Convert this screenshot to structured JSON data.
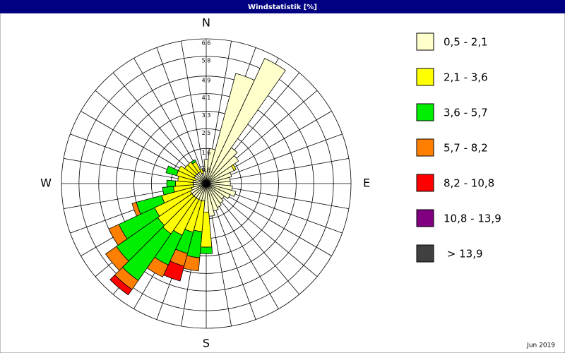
{
  "chart_data": {
    "type": "windrose",
    "title": "Windstatistik [%]",
    "footnote": "Jun 2019",
    "categories": [
      "N",
      null,
      null,
      null,
      null,
      null,
      null,
      null,
      null,
      "E",
      null,
      null,
      null,
      null,
      null,
      null,
      null,
      null,
      "S",
      null,
      null,
      null,
      null,
      null,
      null,
      null,
      null,
      "W",
      null,
      null,
      null,
      null,
      null,
      null,
      null,
      null
    ],
    "rlim": [
      0,
      6.6
    ],
    "rticks": [
      {
        "value": 0.8,
        "label": "0,8"
      },
      {
        "value": 1.6,
        "label": "1,6"
      },
      {
        "value": 2.5,
        "label": "2,5"
      },
      {
        "value": 3.3,
        "label": "3,3"
      },
      {
        "value": 4.1,
        "label": "4,1"
      },
      {
        "value": 4.9,
        "label": "4,9"
      },
      {
        "value": 5.8,
        "label": "5,8"
      },
      {
        "value": 6.6,
        "label": "6,6"
      }
    ],
    "grid": true,
    "legend": "right",
    "series": [
      {
        "name": "0,5 - 2,1",
        "color": "#ffffcc",
        "values": [
          1.1,
          1.6,
          5.2,
          6.3,
          2.0,
          1.8,
          1.4,
          1.2,
          1.1,
          1.1,
          1.2,
          1.4,
          1.2,
          1.0,
          1.1,
          1.2,
          1.3,
          1.5,
          1.3,
          0.8,
          0.8,
          0.8,
          0.8,
          0.8,
          0.8,
          0.7,
          0.6,
          0.6,
          0.6,
          0.5,
          0.6,
          0.6,
          0.6,
          0.6,
          0.5,
          0.6
        ]
      },
      {
        "name": "2,1 - 3,6",
        "color": "#ffff00",
        "values": [
          0,
          0,
          0,
          0,
          0,
          0,
          0.1,
          0,
          0,
          0,
          0,
          0,
          0,
          0,
          0,
          0,
          0,
          0,
          1.6,
          1.4,
          1.5,
          1.8,
          2.0,
          1.9,
          1.8,
          1.4,
          0.9,
          0.8,
          0.7,
          0.9,
          0.8,
          0.6,
          0.6,
          0.5,
          0.2,
          0
        ]
      },
      {
        "name": "3,6 - 5,7",
        "color": "#00ee00",
        "values": [
          0,
          0,
          0,
          0,
          0,
          0,
          0,
          0,
          0,
          0,
          0,
          0,
          0,
          0,
          0,
          0,
          0,
          0,
          0.3,
          1.2,
          1.0,
          1.5,
          2.6,
          2.3,
          1.8,
          1.2,
          0.5,
          0.4,
          0,
          0.5,
          0,
          0,
          0,
          0.1,
          0,
          0
        ]
      },
      {
        "name": "5,7 - 8,2",
        "color": "#ff8000",
        "values": [
          0,
          0,
          0,
          0,
          0,
          0,
          0,
          0,
          0,
          0,
          0,
          0,
          0,
          0,
          0,
          0,
          0,
          0,
          0,
          0.6,
          0.6,
          0.6,
          0.5,
          0.6,
          0.5,
          0.2,
          0,
          0,
          0,
          0,
          0,
          0,
          0,
          0,
          0,
          0
        ]
      },
      {
        "name": "8,2 - 10,8",
        "color": "#ff0000",
        "values": [
          0,
          0,
          0,
          0,
          0,
          0,
          0,
          0,
          0,
          0,
          0,
          0,
          0,
          0,
          0,
          0,
          0,
          0,
          0,
          0,
          0.7,
          0,
          0.3,
          0,
          0,
          0,
          0,
          0,
          0,
          0,
          0,
          0,
          0,
          0,
          0,
          0
        ]
      },
      {
        "name": "10,8 - 13,9",
        "color": "#800080",
        "values": [
          0,
          0,
          0,
          0,
          0,
          0,
          0,
          0,
          0,
          0,
          0,
          0,
          0,
          0,
          0,
          0,
          0,
          0,
          0,
          0,
          0,
          0,
          0,
          0,
          0,
          0,
          0,
          0,
          0,
          0,
          0,
          0,
          0,
          0,
          0,
          0
        ]
      },
      {
        "name": " > 13,9",
        "color": "#404040",
        "values": [
          0,
          0,
          0,
          0,
          0,
          0,
          0,
          0,
          0,
          0,
          0,
          0,
          0,
          0,
          0,
          0,
          0,
          0,
          0,
          0,
          0,
          0,
          0,
          0,
          0,
          0,
          0,
          0,
          0,
          0,
          0,
          0,
          0,
          0,
          0,
          0
        ]
      }
    ]
  }
}
